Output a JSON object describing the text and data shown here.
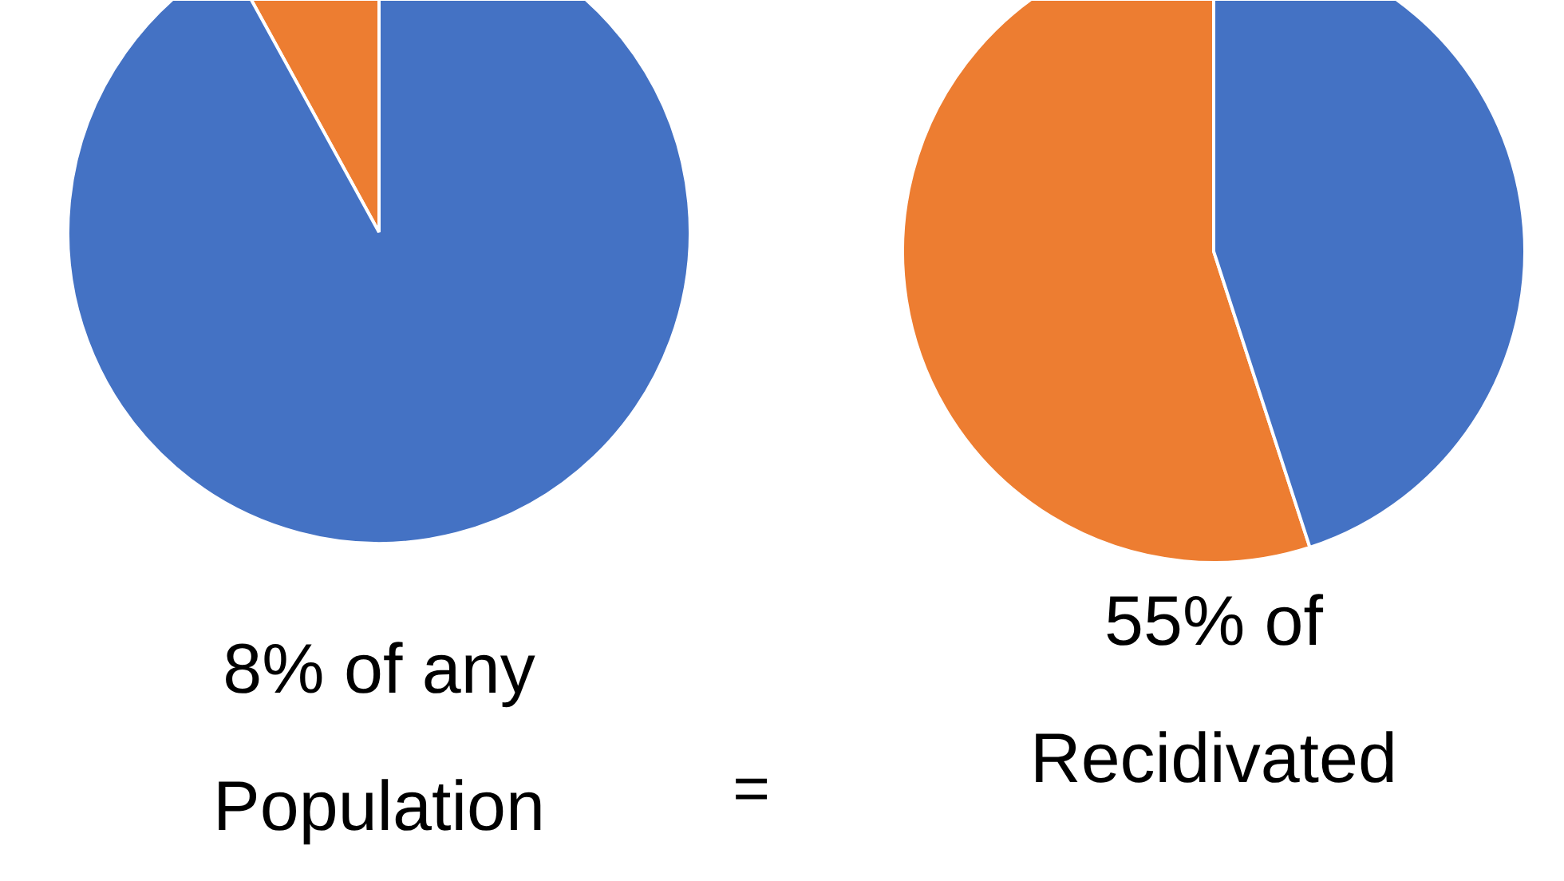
{
  "chart_data": [
    {
      "type": "pie",
      "title": "8% of any\nPopulation",
      "categories": [
        null,
        null
      ],
      "values": [
        8,
        92
      ],
      "colors": [
        "#ed7d31",
        "#4472c4"
      ],
      "annotations": [
        "="
      ]
    },
    {
      "type": "pie",
      "title": "55% of\nRecidivated",
      "categories": [
        null,
        null
      ],
      "values": [
        55,
        45
      ],
      "colors": [
        "#ed7d31",
        "#4472c4"
      ]
    }
  ]
}
